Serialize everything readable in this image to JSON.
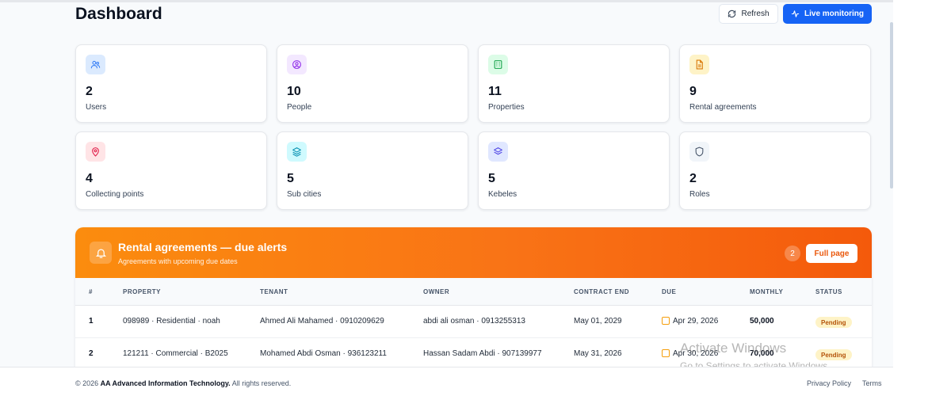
{
  "header": {
    "title": "Dashboard",
    "refresh_label": "Refresh",
    "live_label": "Live monitoring"
  },
  "stats": [
    {
      "value": "2",
      "label": "Users",
      "icon": "users-icon",
      "color": "#3b82f6",
      "bg": "#dbeafe"
    },
    {
      "value": "10",
      "label": "People",
      "icon": "person-icon",
      "color": "#9333ea",
      "bg": "#f3e8ff"
    },
    {
      "value": "11",
      "label": "Properties",
      "icon": "building-icon",
      "color": "#16a34a",
      "bg": "#dcfce7"
    },
    {
      "value": "9",
      "label": "Rental agreements",
      "icon": "document-icon",
      "color": "#d97706",
      "bg": "#fef3c7"
    },
    {
      "value": "4",
      "label": "Collecting points",
      "icon": "map-pin-icon",
      "color": "#e11d48",
      "bg": "#ffe4e6"
    },
    {
      "value": "5",
      "label": "Sub cities",
      "icon": "layers-icon",
      "color": "#0891b2",
      "bg": "#cffafe"
    },
    {
      "value": "5",
      "label": "Kebeles",
      "icon": "layers-icon",
      "color": "#4f46e5",
      "bg": "#e0e7ff"
    },
    {
      "value": "2",
      "label": "Roles",
      "icon": "shield-icon",
      "color": "#475569",
      "bg": "#f1f5f9"
    }
  ],
  "alerts": {
    "title": "Rental agreements — due alerts",
    "subtitle": "Agreements with upcoming due dates",
    "count": "2",
    "full_page_label": "Full page",
    "columns": [
      "#",
      "PROPERTY",
      "TENANT",
      "OWNER",
      "CONTRACT END",
      "DUE",
      "MONTHLY",
      "STATUS"
    ],
    "rows": [
      {
        "num": "1",
        "property": "098989 · Residential · noah",
        "tenant": "Ahmed Ali Mahamed · 0910209629",
        "owner": "abdi ali osman · 0913255313",
        "contract_end": "May 01, 2029",
        "due": "Apr 29, 2026",
        "monthly": "50,000",
        "status": "Pending"
      },
      {
        "num": "2",
        "property": "121211 · Commercial · B2025",
        "tenant": "Mohamed Abdi Osman · 936123211",
        "owner": "Hassan Sadam Abdi · 907139977",
        "contract_end": "May 31, 2026",
        "due": "Apr 30, 2026",
        "monthly": "70,000",
        "status": "Pending"
      }
    ]
  },
  "watermark": {
    "line1": "Activate Windows",
    "line2": "Go to Settings to activate Windows."
  },
  "footer": {
    "year_text": "© 2026",
    "company": "AA Advanced Information Technology.",
    "rights": "All rights reserved.",
    "privacy": "Privacy Policy",
    "terms": "Terms"
  },
  "colors": {
    "primary": "#1663f5",
    "alert_gradient_start": "#fb8c0e",
    "alert_gradient_end": "#f45a0b",
    "pending_bg": "#fef3c7",
    "pending_text": "#b45309"
  }
}
